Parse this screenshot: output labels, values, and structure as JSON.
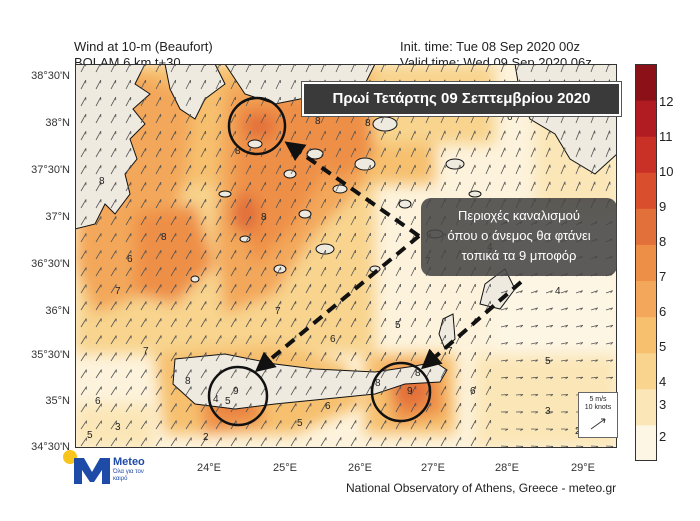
{
  "header": {
    "title_line1": "Wind at 10-m (Beaufort)",
    "title_line2": "BOLAM 6 km t+30",
    "init_time": "Init. time: Tue 08 Sep 2020 00z",
    "valid_time": "Valid time: Wed 09 Sep 2020 06z"
  },
  "banner": "Πρωί Τετάρτης 09 Σεπτεμβρίου 2020",
  "annotation": {
    "line1": "Περιοχές καναλισμού",
    "line2": "όπου ο άνεμος θα φτάνει",
    "line3": "τοπικά τα 9 μποφόρ"
  },
  "axes": {
    "lat_labels": [
      "38°30'N",
      "38°N",
      "37°30'N",
      "37°N",
      "36°30'N",
      "36°N",
      "35°30'N",
      "35°N",
      "34°30'N"
    ],
    "lon_labels": [
      "24°E",
      "25°E",
      "26°E",
      "27°E",
      "28°E",
      "29°E"
    ]
  },
  "colorbar": {
    "labels": [
      "12",
      "11",
      "10",
      "9",
      "8",
      "7",
      "6",
      "5",
      "4",
      "3",
      "2"
    ],
    "colors": [
      "#fdf6e4",
      "#fbe6b7",
      "#f8d48e",
      "#f6c06e",
      "#f3a75a",
      "#ee8f47",
      "#e2703a",
      "#d94f2d",
      "#c93126",
      "#b01c22",
      "#8c1017"
    ]
  },
  "map_labels": {
    "field_numbers": [
      "8",
      "8",
      "8",
      "8",
      "8",
      "8",
      "8",
      "8",
      "8",
      "7",
      "7",
      "7",
      "7",
      "6",
      "6",
      "6",
      "6",
      "6",
      "5",
      "5",
      "5",
      "5",
      "4",
      "4",
      "3",
      "3",
      "2",
      "2",
      "9",
      "9",
      "7",
      "6",
      "5",
      "4"
    ]
  },
  "reference_vector": {
    "line1": "5 m/s",
    "line2": "10 knots"
  },
  "footer": "National Observatory of Athens, Greece - meteo.gr",
  "logo": {
    "word": "Meteo",
    "tagline": "Όλα για τον καιρό",
    "accent": "#1e4aa8",
    "sun": "#f7c51c"
  }
}
